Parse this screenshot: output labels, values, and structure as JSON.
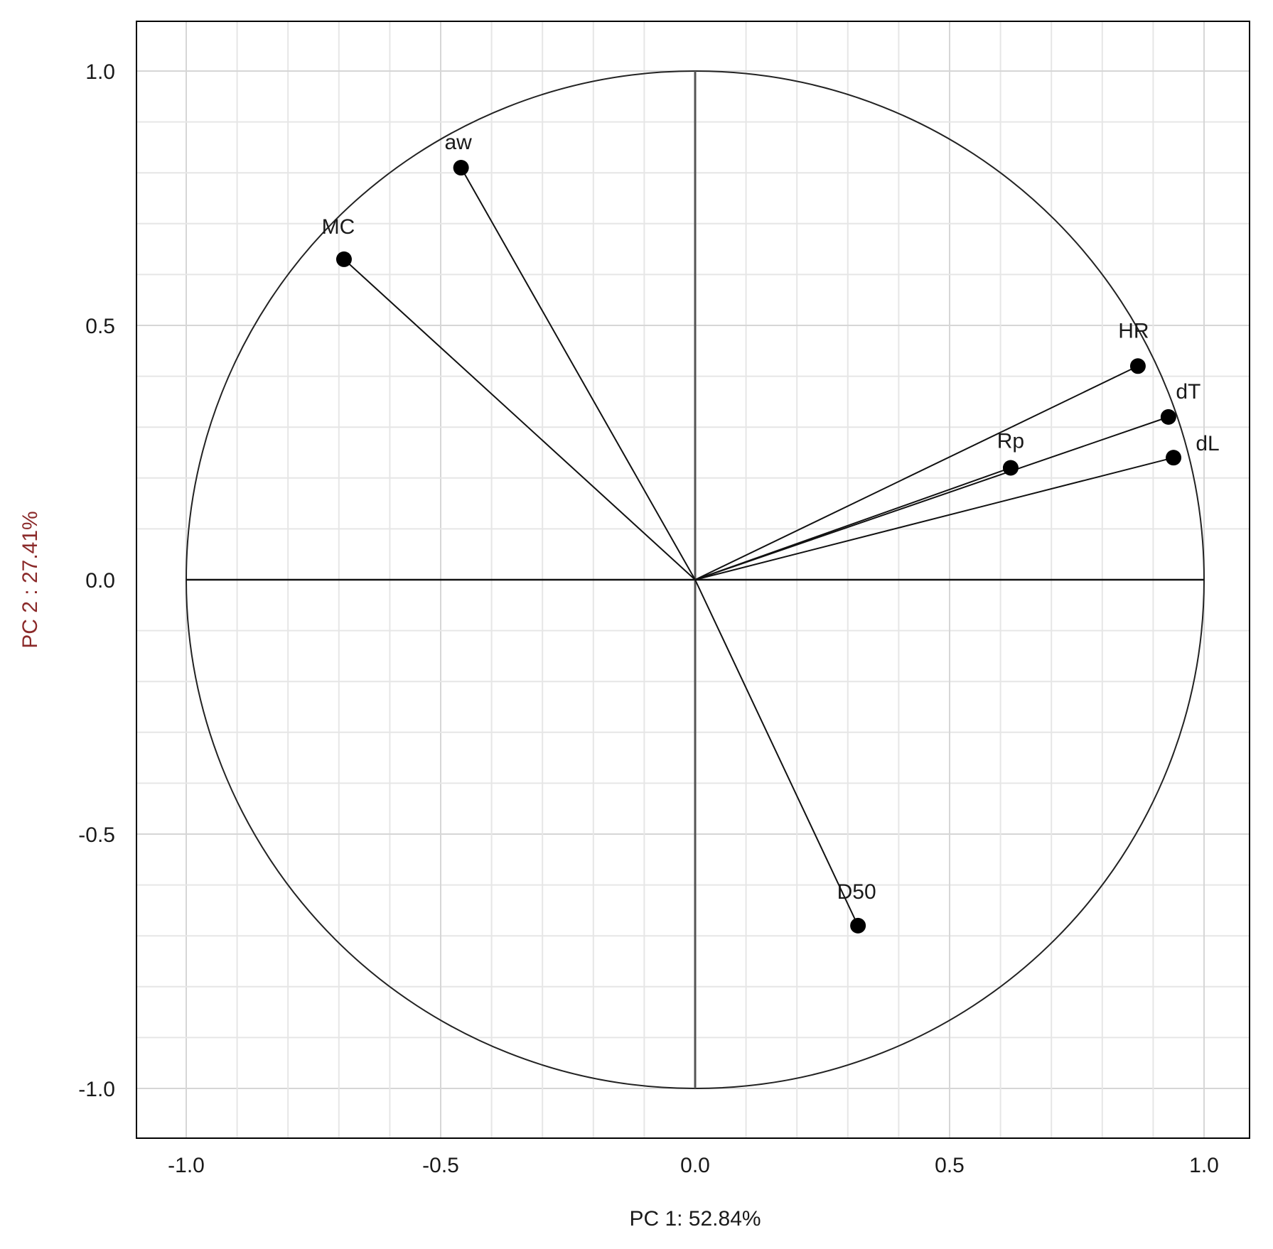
{
  "chart_data": {
    "type": "scatter",
    "subtype": "pca-correlation-circle",
    "xlabel": "PC 1: 52.84%",
    "ylabel": "PC 2 :  27.41%",
    "xlim": [
      -1.1,
      1.1
    ],
    "ylim": [
      -1.1,
      1.1
    ],
    "x_ticks": [
      "-1.0",
      "-0.5",
      "0.0",
      "0.5",
      "1.0"
    ],
    "y_ticks": [
      "1.0",
      "0.5",
      "0.0",
      "-0.5",
      "-1.0"
    ],
    "grid": true,
    "unit_circle": true,
    "points": [
      {
        "label": "aw",
        "x": -0.46,
        "y": 0.81
      },
      {
        "label": "MC",
        "x": -0.69,
        "y": 0.63
      },
      {
        "label": "HR",
        "x": 0.87,
        "y": 0.42
      },
      {
        "label": "dT",
        "x": 0.93,
        "y": 0.32
      },
      {
        "label": "dL",
        "x": 0.94,
        "y": 0.24
      },
      {
        "label": "Rp",
        "x": 0.62,
        "y": 0.22
      },
      {
        "label": "D50",
        "x": 0.32,
        "y": -0.68
      }
    ]
  }
}
